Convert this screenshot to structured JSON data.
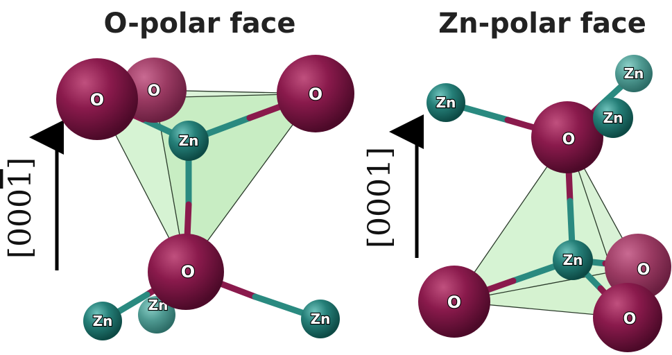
{
  "panels": [
    {
      "title": "O-polar face",
      "direction_label_base": "[000",
      "direction_label_digit": "1",
      "direction_label_end": "]",
      "atoms": [
        {
          "element": "O",
          "label": "O"
        },
        {
          "element": "O",
          "label": "O"
        },
        {
          "element": "O",
          "label": "O"
        },
        {
          "element": "Zn",
          "label": "Zn"
        },
        {
          "element": "O",
          "label": "O"
        },
        {
          "element": "Zn",
          "label": "Zn"
        },
        {
          "element": "Zn",
          "label": "Zn"
        },
        {
          "element": "Zn",
          "label": "Zn"
        }
      ]
    },
    {
      "title": "Zn-polar face",
      "direction_label_base": "[0001",
      "direction_label_digit": "",
      "direction_label_end": "]",
      "atoms": [
        {
          "element": "Zn",
          "label": "Zn"
        },
        {
          "element": "Zn",
          "label": "Zn"
        },
        {
          "element": "Zn",
          "label": "Zn"
        },
        {
          "element": "O",
          "label": "O"
        },
        {
          "element": "Zn",
          "label": "Zn"
        },
        {
          "element": "O",
          "label": "O"
        },
        {
          "element": "O",
          "label": "O"
        },
        {
          "element": "O",
          "label": "O"
        }
      ]
    }
  ],
  "colors": {
    "oxygen": "#7b1240",
    "zinc": "#1a6b66",
    "tetrahedron_fill": "#c8efc4",
    "arrow": "#000000"
  }
}
